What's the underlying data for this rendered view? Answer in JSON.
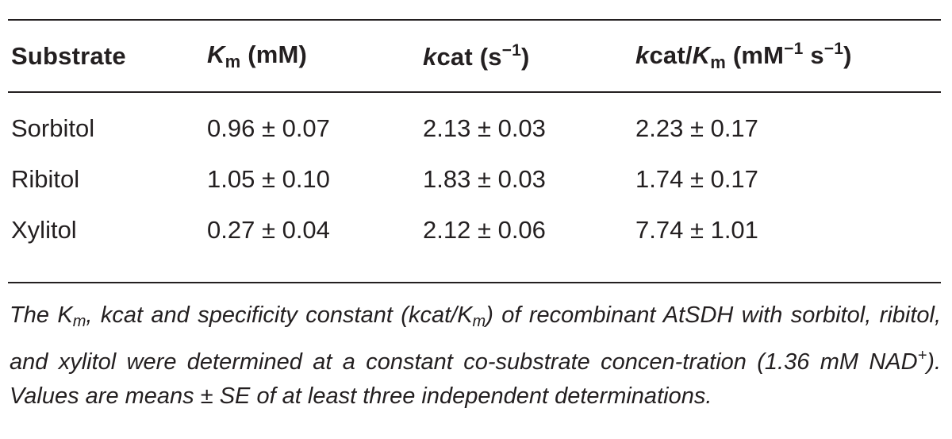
{
  "table": {
    "headers": {
      "substrate": "Substrate",
      "km": {
        "symbol": "K",
        "subscript": "m",
        "unit": "(mM)"
      },
      "kcat": {
        "italic": "k",
        "text": "cat",
        "unit_base": "(s",
        "unit_exp": "−1",
        "unit_close": ")"
      },
      "kcat_km": {
        "italic_k": "k",
        "cat": "cat/",
        "symbol": "K",
        "subscript": "m",
        "unit_open": "(mM",
        "exp1": "−1",
        "space_s": " s",
        "exp2": "−1",
        "unit_close": ")"
      }
    },
    "rows": [
      {
        "substrate": "Sorbitol",
        "km": "0.96 ± 0.07",
        "kcat": "2.13 ± 0.03",
        "kcat_km": "2.23 ± 0.17"
      },
      {
        "substrate": "Ribitol",
        "km": "1.05 ± 0.10",
        "kcat": "1.83 ± 0.03",
        "kcat_km": "1.74 ± 0.17"
      },
      {
        "substrate": "Xylitol",
        "km": "0.27 ± 0.04",
        "kcat": "2.12 ± 0.06",
        "kcat_km": "7.74 ± 1.01"
      }
    ]
  },
  "caption": {
    "p1": "The K",
    "p1_sub": "m",
    "p2": ", kcat and specificity constant (kcat/K",
    "p2_sub": "m",
    "p3": ") of recombinant AtSDH with sorbitol, ribitol, and xylitol were determined at a constant co-substrate concen-tration (1.36 mM NAD",
    "p3_sup": "+",
    "p4": "). Values are means ± SE of at least three independent determinations."
  }
}
